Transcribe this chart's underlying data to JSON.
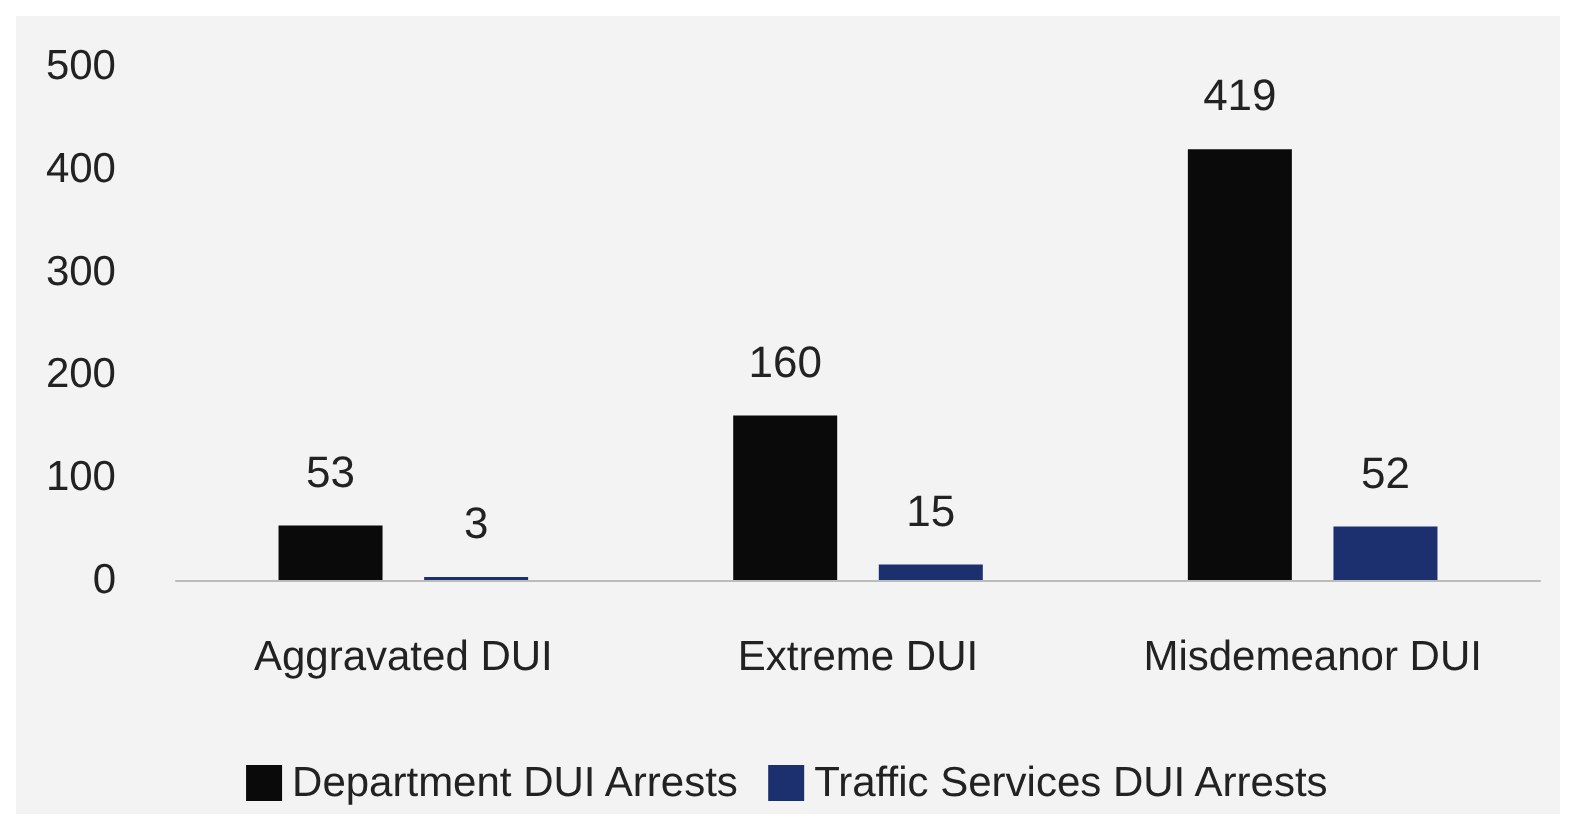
{
  "chart_data": {
    "type": "bar",
    "categories": [
      "Aggravated DUI",
      "Extreme DUI",
      "Misdemeanor DUI"
    ],
    "series": [
      {
        "name": "Department DUI Arrests",
        "color": "#0a0a0a",
        "values": [
          53,
          160,
          419
        ]
      },
      {
        "name": "Traffic Services DUI Arrests",
        "color": "#1c2f6e",
        "values": [
          3,
          15,
          52
        ]
      }
    ],
    "ylim": [
      0,
      500
    ],
    "yticks": [
      0,
      100,
      200,
      300,
      400,
      500
    ],
    "grid": false,
    "legend": "bottom",
    "data_labels": true
  }
}
